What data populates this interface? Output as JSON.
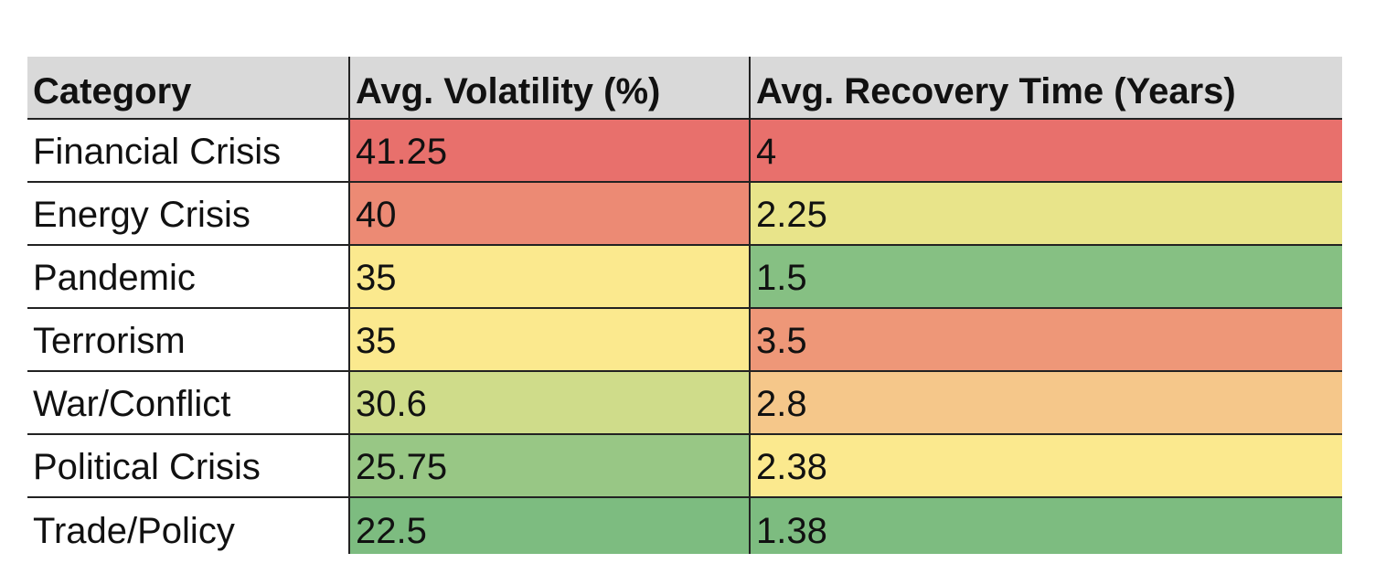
{
  "chart_data": {
    "type": "table",
    "columns": [
      "Category",
      "Avg. Volatility (%)",
      "Avg. Recovery Time (Years)"
    ],
    "rows": [
      {
        "category": "Financial Crisis",
        "volatility": "41.25",
        "recovery": "4",
        "volatility_color": "#e8706c",
        "recovery_color": "#e8706c"
      },
      {
        "category": "Energy Crisis",
        "volatility": "40",
        "recovery": "2.25",
        "volatility_color": "#ec8a74",
        "recovery_color": "#e8e48a"
      },
      {
        "category": "Pandemic",
        "volatility": "35",
        "recovery": "1.5",
        "volatility_color": "#fbe98e",
        "recovery_color": "#86c083"
      },
      {
        "category": "Terrorism",
        "volatility": "35",
        "recovery": "3.5",
        "volatility_color": "#fbe98e",
        "recovery_color": "#ee9778"
      },
      {
        "category": "War/Conflict",
        "volatility": "30.6",
        "recovery": "2.8",
        "volatility_color": "#cfdc8a",
        "recovery_color": "#f5c78a"
      },
      {
        "category": "Political Crisis",
        "volatility": "25.75",
        "recovery": "2.38",
        "volatility_color": "#98c785",
        "recovery_color": "#fbe98e"
      },
      {
        "category": "Trade/Policy",
        "volatility": "22.5",
        "recovery": "1.38",
        "volatility_color": "#7dbc80",
        "recovery_color": "#7dbc80"
      }
    ]
  }
}
